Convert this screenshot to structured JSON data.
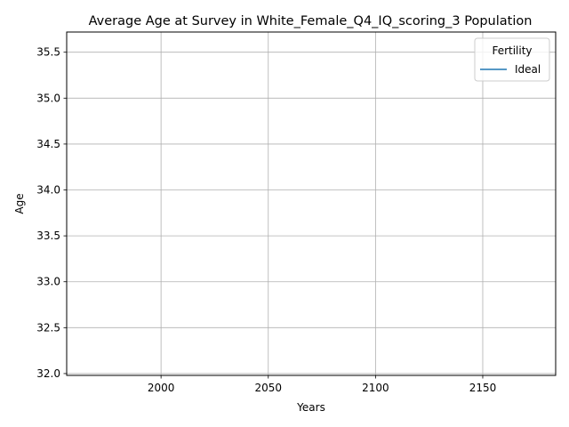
{
  "chart_data": {
    "type": "line",
    "title": "Average Age at Survey in White_Female_Q4_IQ_scoring_3 Population",
    "xlabel": "Years",
    "ylabel": "Age",
    "xlim": [
      1956,
      2184
    ],
    "ylim": [
      31.98,
      35.72
    ],
    "x_ticks": [
      2000,
      2050,
      2100,
      2150
    ],
    "x_tick_labels": [
      "2000",
      "2050",
      "2100",
      "2150"
    ],
    "y_ticks": [
      32.0,
      32.5,
      33.0,
      33.5,
      34.0,
      34.5,
      35.0,
      35.5
    ],
    "y_tick_labels": [
      "32.0",
      "32.5",
      "33.0",
      "33.5",
      "34.0",
      "34.5",
      "35.0",
      "35.5"
    ],
    "grid": true,
    "legend": {
      "title": "Fertility",
      "placement": "top-right"
    },
    "series": [
      {
        "name": "Ideal",
        "color": "#1f77b4",
        "x": [],
        "y": []
      }
    ]
  }
}
